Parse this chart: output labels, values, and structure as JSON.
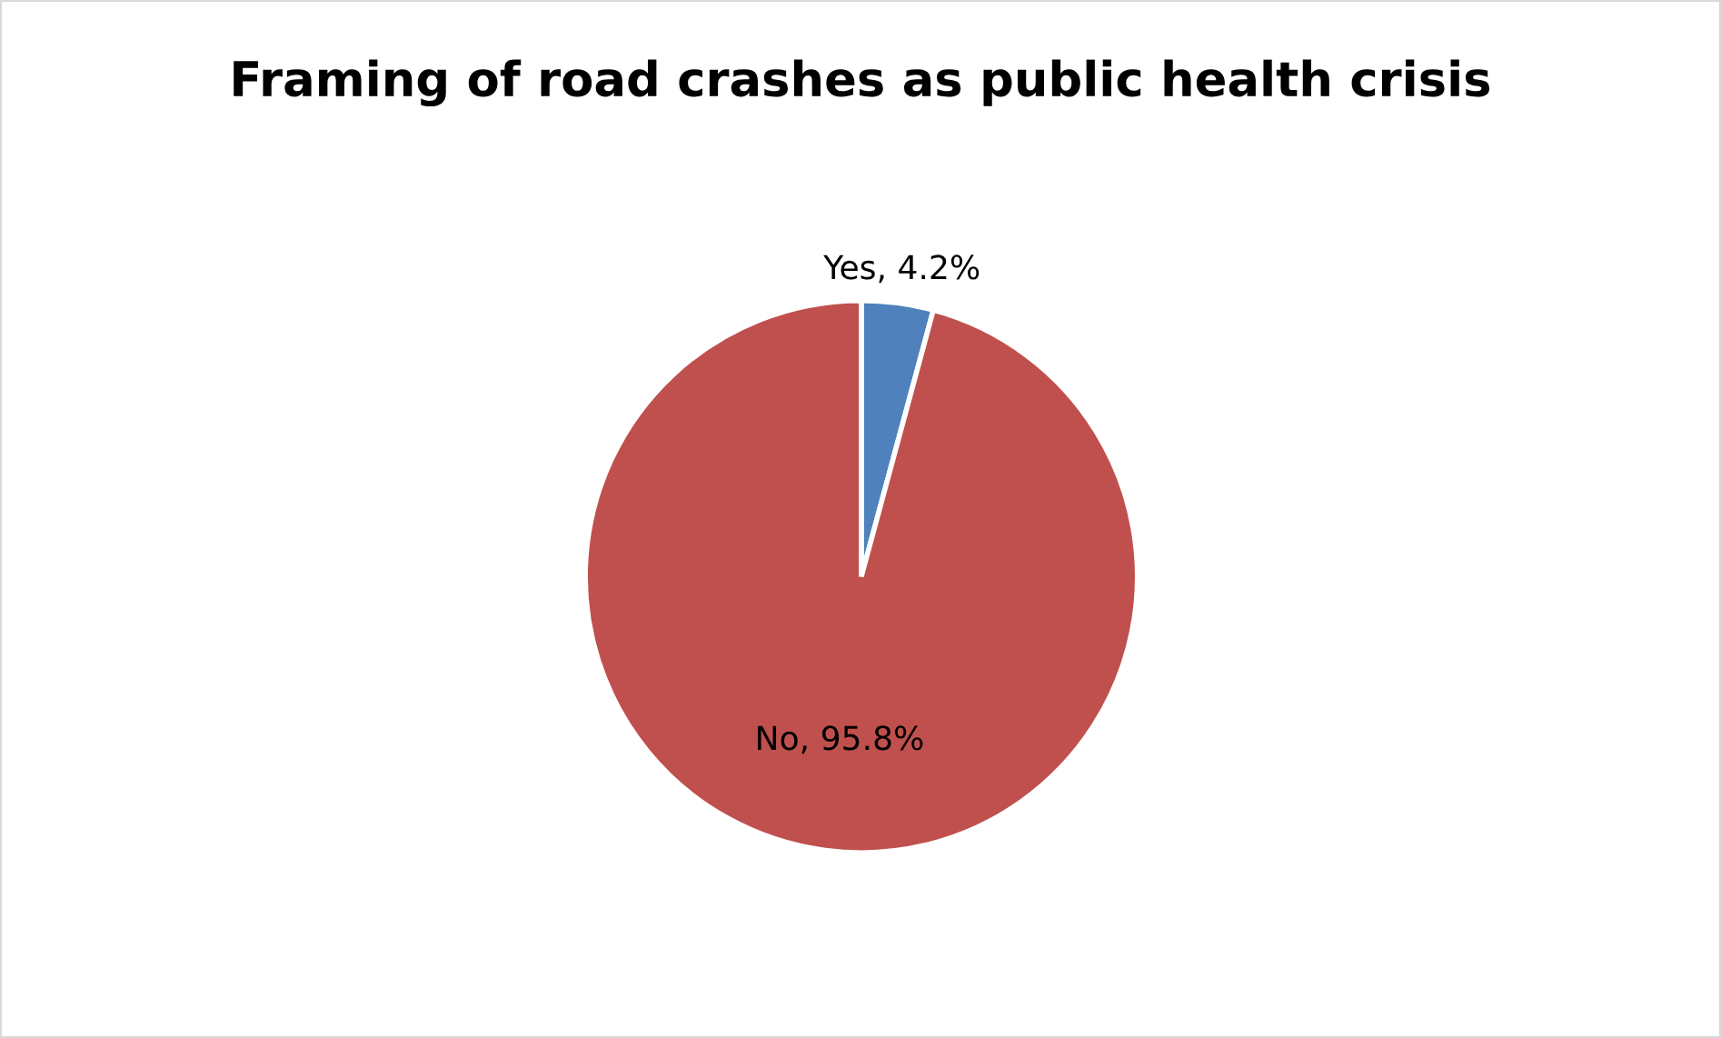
{
  "chart_data": {
    "type": "pie",
    "title": "Framing of road crashes as public health crisis",
    "categories": [
      "Yes",
      "No"
    ],
    "values": [
      4.2,
      95.8
    ],
    "value_labels": [
      "4.2%",
      "95.8%"
    ],
    "colors": [
      "#4f81bd",
      "#c0504d"
    ],
    "legend": false
  }
}
